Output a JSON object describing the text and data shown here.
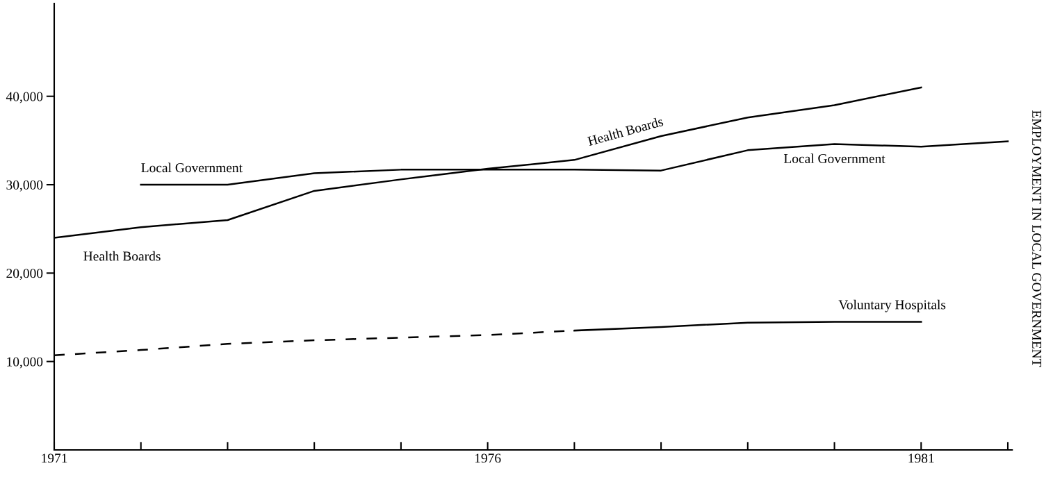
{
  "chart_data": {
    "type": "line",
    "ylabel": "EMPLOYMENT IN LOCAL GOVERNMENT",
    "x": [
      1971,
      1972,
      1973,
      1974,
      1975,
      1976,
      1977,
      1978,
      1979,
      1980,
      1981,
      1982
    ],
    "series": [
      {
        "name": "Health Boards",
        "color": "#000000",
        "line_style": "solid",
        "values": [
          24000,
          25200,
          26000,
          29300,
          30600,
          31800,
          32800,
          35500,
          37600,
          39000,
          41000,
          null
        ]
      },
      {
        "name": "Local Government",
        "color": "#000000",
        "line_style": "solid",
        "values": [
          null,
          30000,
          30000,
          31300,
          31700,
          31700,
          31700,
          31600,
          33900,
          34600,
          34300,
          34900
        ]
      },
      {
        "color": "#000000",
        "line_style": "dashed",
        "values": [
          10700,
          11300,
          12000,
          12400,
          12700,
          13000,
          13500,
          null,
          null,
          null,
          null,
          null
        ]
      },
      {
        "name": "Voluntary Hospitals",
        "color": "#000000",
        "line_style": "solid",
        "values": [
          null,
          null,
          null,
          null,
          null,
          null,
          13500,
          13900,
          14400,
          14500,
          14500,
          null
        ]
      }
    ],
    "xlim": [
      1971,
      1982.05
    ],
    "ylim": [
      0,
      50500
    ],
    "xticks": [
      1971,
      {
        "value": 1972,
        "label": null
      },
      {
        "value": 1973,
        "label": null
      },
      {
        "value": 1974,
        "label": null
      },
      {
        "value": 1975,
        "label": null
      },
      1976,
      {
        "value": 1977,
        "label": null
      },
      {
        "value": 1978,
        "label": null
      },
      {
        "value": 1979,
        "label": null
      },
      {
        "value": 1980,
        "label": null
      },
      1981,
      {
        "value": 1982,
        "label": null
      }
    ],
    "yticks": [
      {
        "value": 10000,
        "label": "10,000"
      },
      {
        "value": 20000,
        "label": "20,000"
      },
      {
        "value": 30000,
        "label": "30,000"
      },
      {
        "value": 40000,
        "label": "40,000"
      }
    ],
    "grid": false,
    "legend": false,
    "marker": "none"
  }
}
